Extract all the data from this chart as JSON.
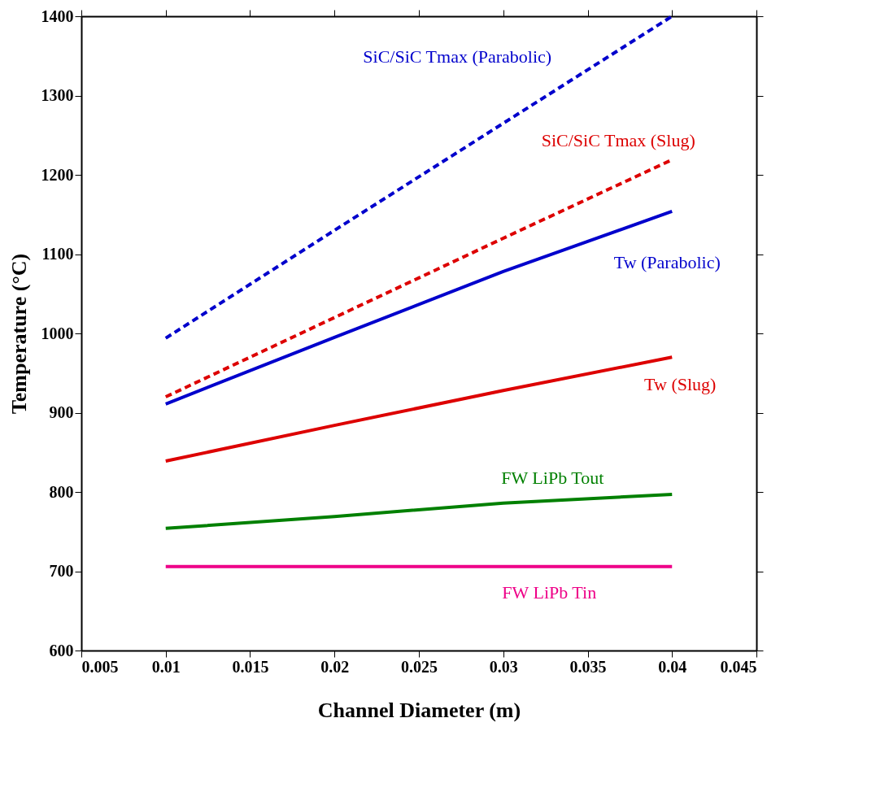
{
  "chart_data": {
    "type": "line",
    "xlabel": "Channel Diameter (m)",
    "ylabel": "Temperature (°C)",
    "x": [
      0.01,
      0.02,
      0.03,
      0.04
    ],
    "series": [
      {
        "name": "SiC/SiC Tmax (Parabolic)",
        "color": "#0000cc",
        "line_style": "dashed",
        "values": [
          994,
          1130,
          1265,
          1400
        ]
      },
      {
        "name": "SiC/SiC Tmax (Slug)",
        "color": "#dd0000",
        "line_style": "dashed",
        "values": [
          920,
          1020,
          1120,
          1219
        ]
      },
      {
        "name": "Tw (Parabolic)",
        "color": "#0000cc",
        "line_style": "solid",
        "values": [
          911,
          995,
          1078,
          1154
        ]
      },
      {
        "name": "Tw (Slug)",
        "color": "#dd0000",
        "line_style": "solid",
        "values": [
          839,
          884,
          928,
          970
        ]
      },
      {
        "name": "FW LiPb Tout",
        "color": "#008000",
        "line_style": "solid",
        "values": [
          754,
          769,
          786,
          797
        ]
      },
      {
        "name": "FW LiPb Tin",
        "color": "#ee0088",
        "line_style": "solid",
        "values": [
          706,
          706,
          706,
          706
        ]
      }
    ],
    "xlim": [
      0.005,
      0.045
    ],
    "xticks": [
      0.005,
      0.01,
      0.015,
      0.02,
      0.025,
      0.03,
      0.035,
      0.04,
      0.045
    ],
    "ylim": [
      600,
      1400
    ],
    "yticks": [
      600,
      700,
      800,
      900,
      1000,
      1100,
      1200,
      1300,
      1400
    ],
    "grid": false,
    "marker": "none"
  }
}
